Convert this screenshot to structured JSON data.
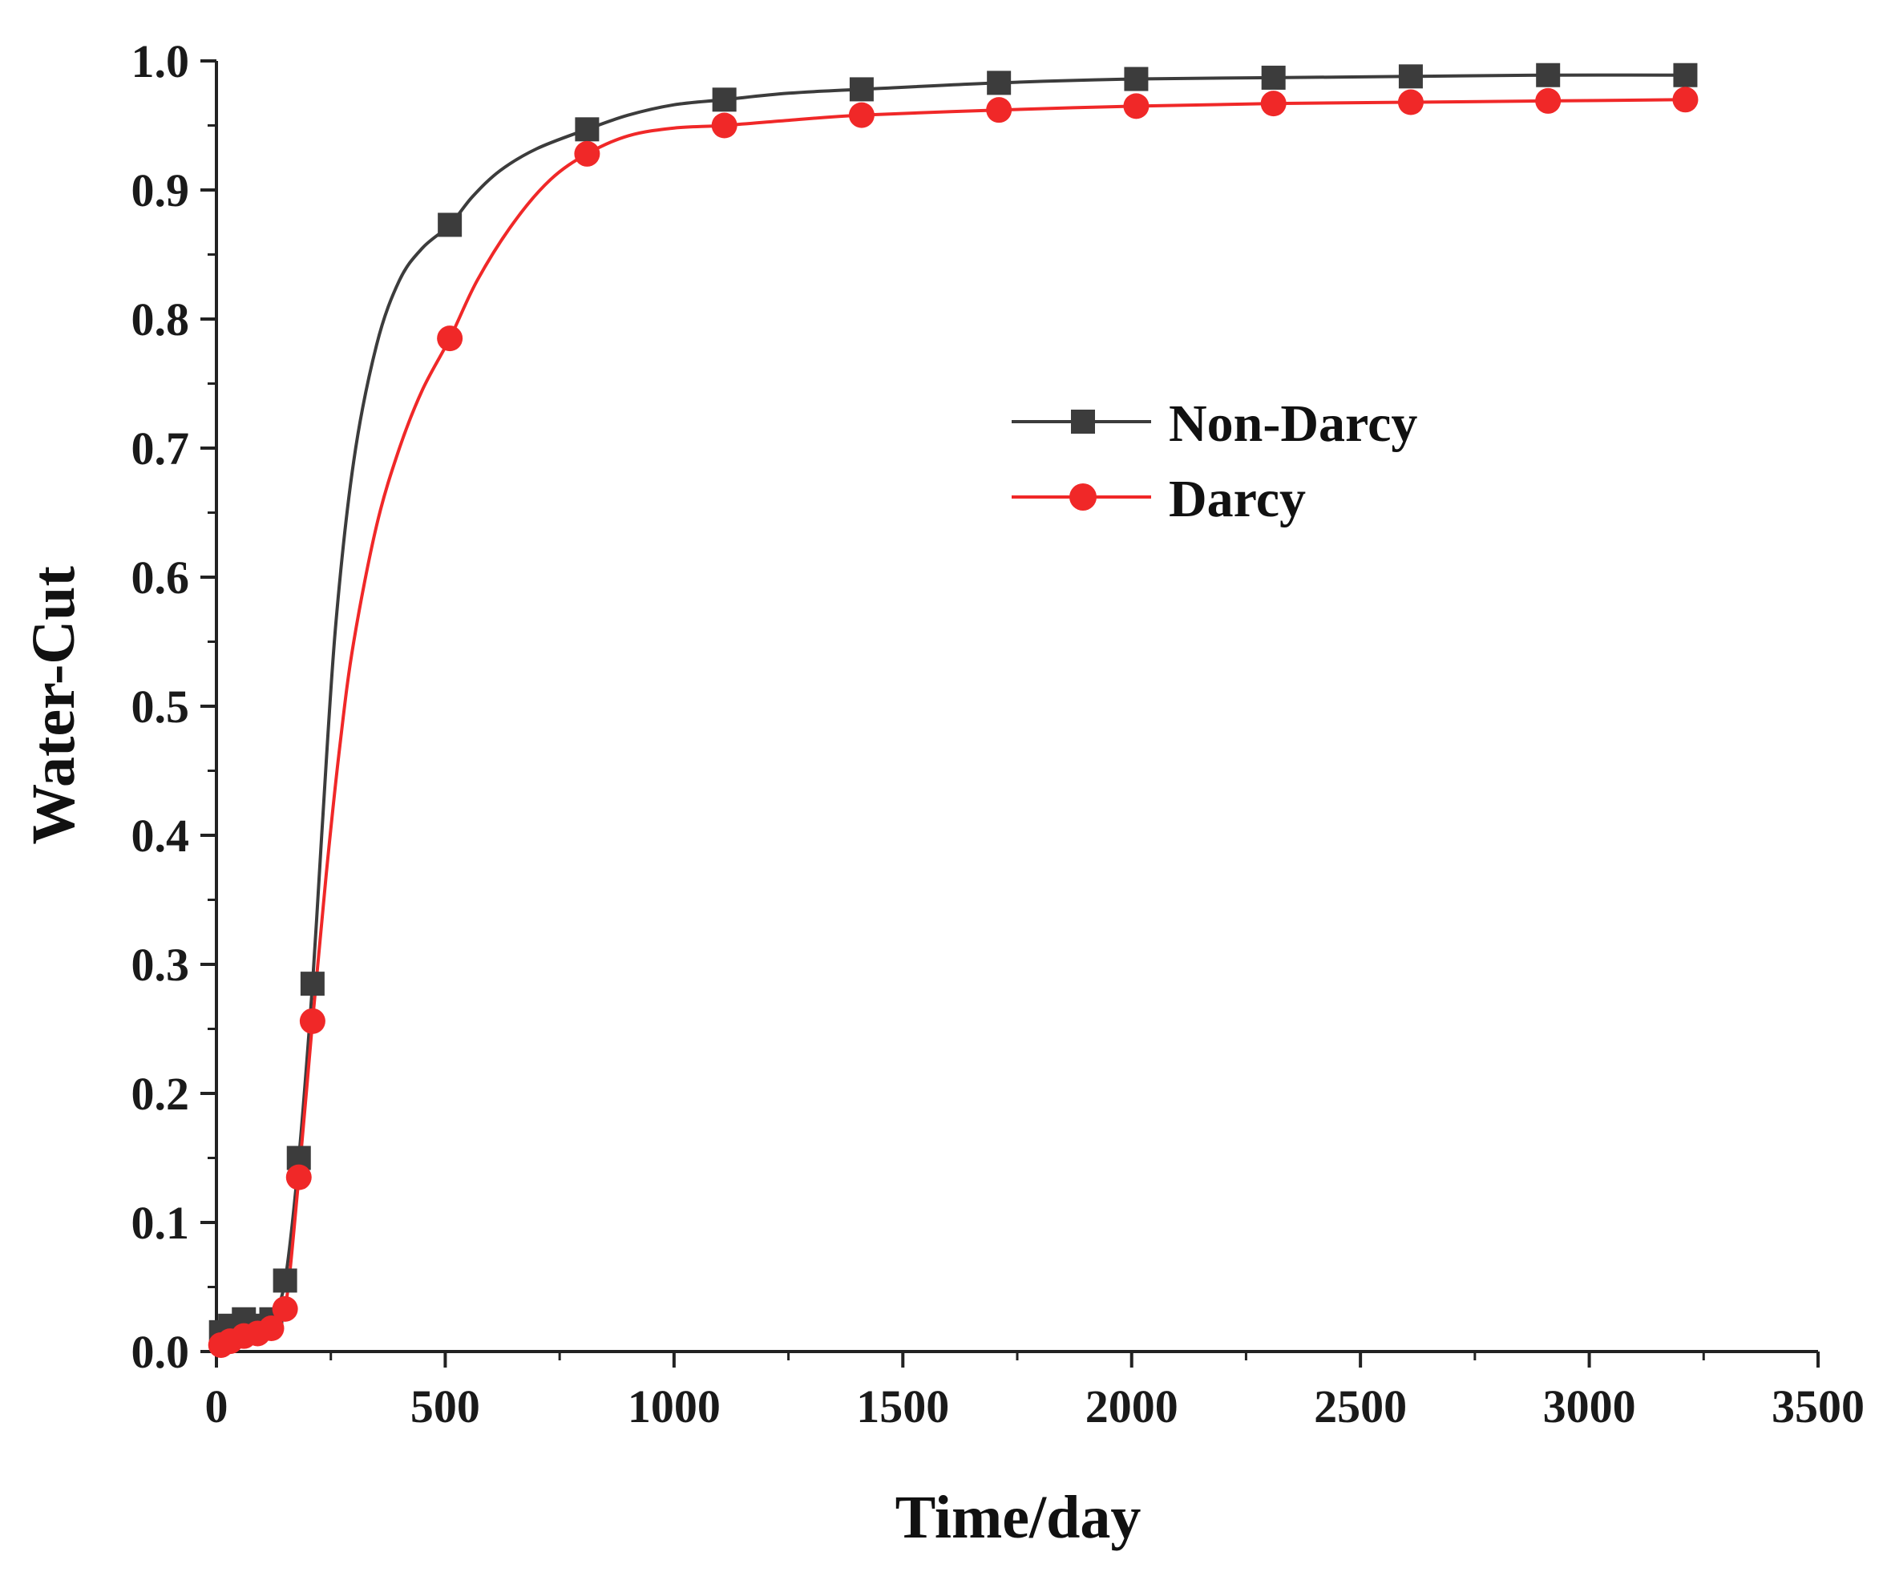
{
  "chart_data": {
    "type": "line",
    "xlabel": "Time/day",
    "ylabel": "Water-Cut",
    "xlim": [
      0,
      3500
    ],
    "ylim": [
      0,
      1.0
    ],
    "x_ticks": [
      0,
      500,
      1000,
      1500,
      2000,
      2500,
      3000,
      3500
    ],
    "y_ticks": [
      0.0,
      0.1,
      0.2,
      0.3,
      0.4,
      0.5,
      0.6,
      0.7,
      0.8,
      0.9,
      1.0
    ],
    "x_tick_labels": [
      "0",
      "500",
      "1000",
      "1500",
      "2000",
      "2500",
      "3000",
      "3500"
    ],
    "y_tick_labels": [
      "0.0",
      "0.1",
      "0.2",
      "0.3",
      "0.4",
      "0.5",
      "0.6",
      "0.7",
      "0.8",
      "0.9",
      "1.0"
    ],
    "grid": false,
    "legend_position": "center-right",
    "series": [
      {
        "name": "Non-Darcy",
        "color": "#3c3c3c",
        "marker": "square",
        "x": [
          10,
          30,
          60,
          90,
          120,
          150,
          180,
          210,
          510,
          810,
          1110,
          1410,
          1710,
          2010,
          2310,
          2610,
          2910,
          3210
        ],
        "y": [
          0.015,
          0.02,
          0.025,
          0.02,
          0.025,
          0.055,
          0.15,
          0.285,
          0.873,
          0.947,
          0.97,
          0.978,
          0.983,
          0.986,
          0.987,
          0.988,
          0.989,
          0.989
        ],
        "curve_x": [
          10,
          30,
          60,
          90,
          120,
          150,
          180,
          210,
          230,
          260,
          300,
          350,
          400,
          450,
          510,
          560,
          620,
          700,
          810,
          900,
          1000,
          1110,
          1250,
          1410,
          1710,
          2010,
          2310,
          2610,
          2910,
          3210
        ],
        "curve_y": [
          0.015,
          0.02,
          0.025,
          0.02,
          0.025,
          0.055,
          0.15,
          0.285,
          0.4,
          0.56,
          0.69,
          0.78,
          0.83,
          0.855,
          0.873,
          0.895,
          0.915,
          0.932,
          0.947,
          0.958,
          0.966,
          0.97,
          0.975,
          0.978,
          0.983,
          0.986,
          0.987,
          0.988,
          0.989,
          0.989
        ]
      },
      {
        "name": "Darcy",
        "color": "#f02828",
        "marker": "circle",
        "x": [
          10,
          30,
          60,
          90,
          120,
          150,
          180,
          210,
          510,
          810,
          1110,
          1410,
          1710,
          2010,
          2310,
          2610,
          2910,
          3210
        ],
        "y": [
          0.005,
          0.008,
          0.012,
          0.014,
          0.018,
          0.033,
          0.135,
          0.256,
          0.785,
          0.928,
          0.95,
          0.958,
          0.962,
          0.965,
          0.967,
          0.968,
          0.969,
          0.97
        ],
        "curve_x": [
          10,
          30,
          60,
          90,
          120,
          150,
          180,
          210,
          240,
          270,
          300,
          350,
          400,
          450,
          510,
          570,
          650,
          730,
          810,
          900,
          1000,
          1110,
          1250,
          1410,
          1710,
          2010,
          2310,
          2610,
          2910,
          3210
        ],
        "curve_y": [
          0.005,
          0.008,
          0.012,
          0.014,
          0.018,
          0.033,
          0.135,
          0.256,
          0.37,
          0.47,
          0.55,
          0.64,
          0.7,
          0.745,
          0.785,
          0.83,
          0.875,
          0.908,
          0.928,
          0.942,
          0.948,
          0.95,
          0.954,
          0.958,
          0.962,
          0.965,
          0.967,
          0.968,
          0.969,
          0.97
        ]
      }
    ]
  }
}
